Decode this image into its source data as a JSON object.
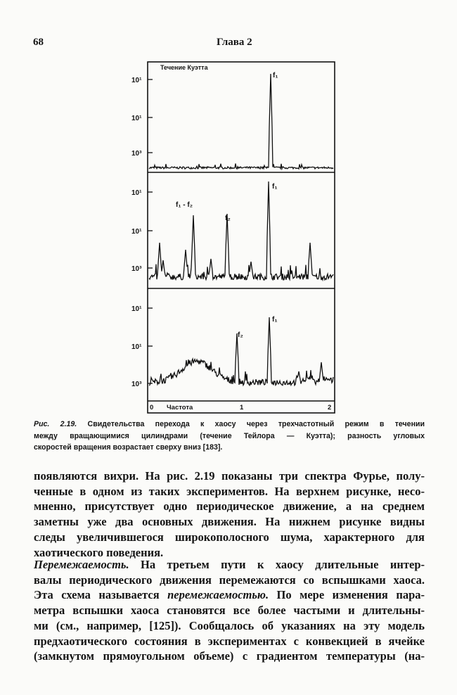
{
  "header": {
    "page_number": "68",
    "running_title": "Глава 2"
  },
  "figure": {
    "panels": [
      {
        "title": "Течение Куэтта",
        "tick_labels": [
          "10¹",
          "10¹",
          "10³"
        ],
        "peak_labels": [
          "f₁"
        ]
      },
      {
        "tick_labels": [
          "10¹",
          "10¹",
          "10³"
        ],
        "peak_labels": [
          "f₁ - f₂",
          "f₂",
          "f₁"
        ]
      },
      {
        "tick_labels": [
          "10¹",
          "10¹",
          "10³"
        ],
        "peak_labels": [
          "f₂",
          "f₁"
        ]
      }
    ],
    "x_axis": {
      "labels": [
        "0",
        "Частота",
        "1",
        "2"
      ]
    },
    "caption": {
      "lines": [
        [
          {
            "text": "Рис. 2.19.",
            "italic": true
          },
          {
            "text": " Свидетельства перехода к хаосу через трехчастотный режим в течении"
          }
        ],
        [
          {
            "text": "между вращающимися цилиндрами (течение Тейлора — Куэтта); разность угловых"
          }
        ],
        [
          {
            "text": "скоростей вращения возрастает сверху вниз [183]."
          }
        ]
      ]
    }
  },
  "body": {
    "paragraphs": [
      {
        "lines": [
          [
            {
              "text": "появляются вихри. На рис. 2.19 показаны три спектра Фурье, полу-"
            }
          ],
          [
            {
              "text": "ченные в одном из таких экспериментов. На верхнем рисунке, несо-"
            }
          ],
          [
            {
              "text": "мненно, присутствует одно периодическое движение, а на среднем"
            }
          ],
          [
            {
              "text": "заметны уже два основных движения. На нижнем рисунке видны"
            }
          ],
          [
            {
              "text": "следы увеличившегося широкополосного шума, характерного для"
            }
          ],
          [
            {
              "text": "хаотического поведения."
            }
          ]
        ]
      },
      {
        "lines": [
          [
            {
              "text": "Перемежаемость.",
              "italic": true
            },
            {
              "text": " На третьем пути к хаосу длительные интер-"
            }
          ],
          [
            {
              "text": "валы периодического движения перемежаются со вспышками хаоса."
            }
          ],
          [
            {
              "text": "Эта схема называется "
            },
            {
              "text": "перемежаемостью.",
              "italic": true
            },
            {
              "text": " По мере изменения пара-"
            }
          ],
          [
            {
              "text": "метра вспышки хаоса становятся все более частыми и длительны-"
            }
          ],
          [
            {
              "text": "ми (см., например, [125]). Сообщалось об указаниях на эту модель"
            }
          ],
          [
            {
              "text": "предхаотического состояния в экспериментах с конвекцией в ячейке"
            }
          ],
          [
            {
              "text": "(замкнутом прямоугольном объеме) с градиентом температуры (на-"
            }
          ]
        ]
      }
    ]
  }
}
